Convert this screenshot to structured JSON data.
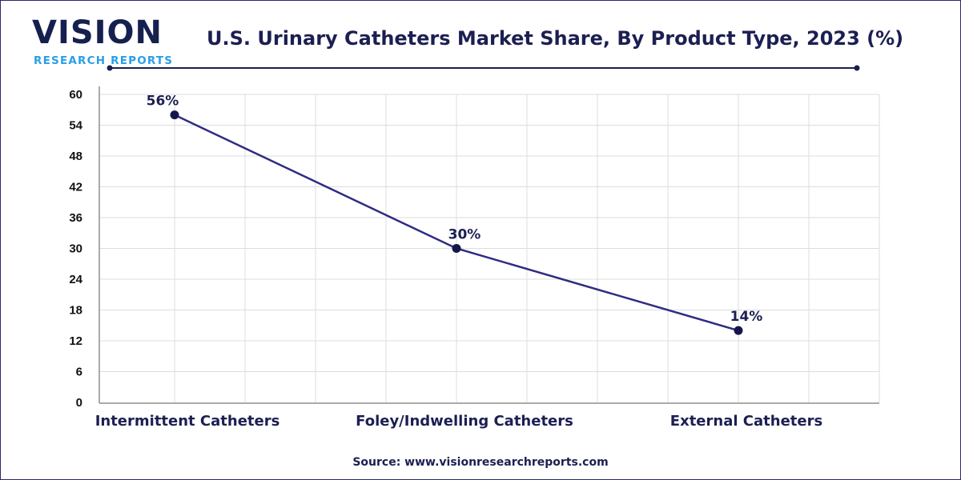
{
  "logo": {
    "word": "VISION",
    "sub": "RESEARCH REPORTS"
  },
  "colors": {
    "line": "#2e2c82",
    "marker": "#14164a",
    "grid": "#dddddd",
    "title": "#1c1f52",
    "logo_blue": "#2a9fe8"
  },
  "source": "Source: www.visionresearchreports.com",
  "chart_data": {
    "type": "line",
    "title": "U.S. Urinary Catheters Market Share, By Product Type, 2023 (%)",
    "categories": [
      "Intermittent Catheters",
      "Foley/Indwelling Catheters",
      "External Catheters"
    ],
    "values": [
      56,
      30,
      14
    ],
    "data_labels": [
      "56%",
      "30%",
      "14%"
    ],
    "ylim": [
      0,
      60
    ],
    "yticks": [
      "0",
      "6",
      "12",
      "18",
      "24",
      "30",
      "36",
      "42",
      "48",
      "54",
      "60"
    ],
    "grid": true,
    "legend": "none"
  }
}
